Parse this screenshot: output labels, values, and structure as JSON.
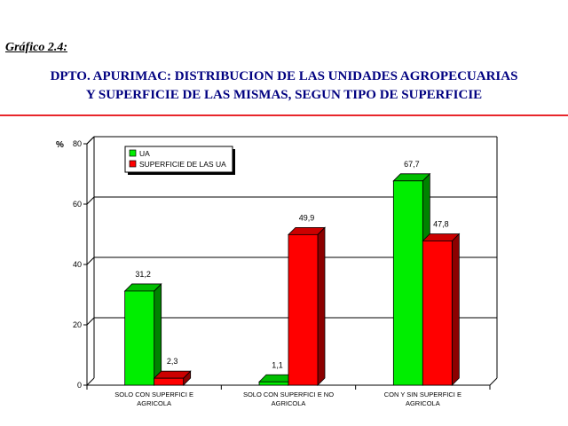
{
  "figure_label": "Gráfico 2.4:",
  "title_line1": "DPTO. APURIMAC: DISTRIBUCION DE LAS UNIDADES AGROPECUARIAS",
  "title_line2": "Y SUPERFICIE DE LAS MISMAS, SEGUN TIPO DE SUPERFICIE",
  "colors": {
    "title": "#000080",
    "rule": "#e8262b",
    "ua": "#00ee00",
    "superficie": "#ff0000"
  },
  "chart_data": {
    "type": "bar",
    "ylabel": "%",
    "ylim": [
      0,
      80
    ],
    "yticks": [
      0,
      20,
      40,
      60,
      80
    ],
    "grid": true,
    "legend_position": "top-left",
    "categories": [
      [
        "SOLO CON SUPERFICI E",
        "AGRICOLA"
      ],
      [
        "SOLO CON SUPERFICI E  NO",
        "AGRICOLA"
      ],
      [
        "CON Y SIN SUPERFICI E",
        "AGRICOLA"
      ]
    ],
    "series": [
      {
        "name": "UA",
        "values": [
          31.2,
          1.1,
          67.7
        ],
        "labels": [
          "31,2",
          "1,1",
          "67,7"
        ]
      },
      {
        "name": "SUPERFICIE DE LAS UA",
        "values": [
          2.3,
          49.9,
          47.8
        ],
        "labels": [
          "2,3",
          "49,9",
          "47,8"
        ]
      }
    ]
  }
}
